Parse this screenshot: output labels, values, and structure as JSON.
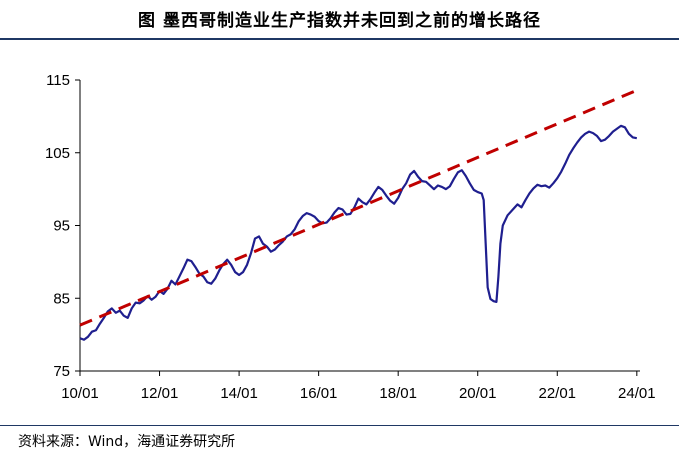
{
  "title": "图 墨西哥制造业生产指数并未回到之前的增长路径",
  "source": "资料来源：Wind，海通证券研究所",
  "colors": {
    "series": "#1f1f8f",
    "trend": "#c00000",
    "axis": "#000000",
    "rule": "#1f3864"
  },
  "chart_data": {
    "type": "line",
    "title": "墨西哥制造业生产指数并未回到之前的增长路径",
    "xlabel": "",
    "ylabel": "",
    "xlim": [
      2010.0,
      2024.08
    ],
    "ylim": [
      75,
      115
    ],
    "yticks": [
      75,
      85,
      95,
      105,
      115
    ],
    "xticks": [
      {
        "value": 2010.0,
        "label": "10/01"
      },
      {
        "value": 2012.0,
        "label": "12/01"
      },
      {
        "value": 2014.0,
        "label": "14/01"
      },
      {
        "value": 2016.0,
        "label": "16/01"
      },
      {
        "value": 2018.0,
        "label": "18/01"
      },
      {
        "value": 2020.0,
        "label": "20/01"
      },
      {
        "value": 2022.0,
        "label": "22/01"
      },
      {
        "value": 2024.0,
        "label": "24/01"
      }
    ],
    "grid": false,
    "legend": "none",
    "series": [
      {
        "style": "solid",
        "color": "#1f1f8f",
        "points": [
          [
            2010.0,
            79.5
          ],
          [
            2010.1,
            79.3
          ],
          [
            2010.2,
            79.7
          ],
          [
            2010.3,
            80.4
          ],
          [
            2010.4,
            80.6
          ],
          [
            2010.5,
            81.5
          ],
          [
            2010.6,
            82.3
          ],
          [
            2010.7,
            83.2
          ],
          [
            2010.8,
            83.6
          ],
          [
            2010.9,
            83.0
          ],
          [
            2011.0,
            83.3
          ],
          [
            2011.1,
            82.6
          ],
          [
            2011.2,
            82.3
          ],
          [
            2011.3,
            83.6
          ],
          [
            2011.4,
            84.4
          ],
          [
            2011.5,
            84.3
          ],
          [
            2011.6,
            84.7
          ],
          [
            2011.7,
            85.3
          ],
          [
            2011.8,
            84.8
          ],
          [
            2011.9,
            85.2
          ],
          [
            2012.0,
            86.0
          ],
          [
            2012.1,
            85.6
          ],
          [
            2012.2,
            86.3
          ],
          [
            2012.3,
            87.4
          ],
          [
            2012.4,
            86.9
          ],
          [
            2012.5,
            88.0
          ],
          [
            2012.6,
            89.1
          ],
          [
            2012.7,
            90.3
          ],
          [
            2012.8,
            90.1
          ],
          [
            2012.9,
            89.3
          ],
          [
            2013.0,
            88.4
          ],
          [
            2013.1,
            88.0
          ],
          [
            2013.2,
            87.2
          ],
          [
            2013.3,
            87.0
          ],
          [
            2013.4,
            87.7
          ],
          [
            2013.5,
            88.8
          ],
          [
            2013.6,
            89.7
          ],
          [
            2013.7,
            90.3
          ],
          [
            2013.8,
            89.6
          ],
          [
            2013.9,
            88.6
          ],
          [
            2014.0,
            88.2
          ],
          [
            2014.1,
            88.6
          ],
          [
            2014.2,
            89.6
          ],
          [
            2014.3,
            91.2
          ],
          [
            2014.4,
            93.2
          ],
          [
            2014.5,
            93.5
          ],
          [
            2014.6,
            92.5
          ],
          [
            2014.7,
            92.1
          ],
          [
            2014.8,
            91.4
          ],
          [
            2014.9,
            91.7
          ],
          [
            2015.0,
            92.3
          ],
          [
            2015.1,
            92.8
          ],
          [
            2015.2,
            93.5
          ],
          [
            2015.3,
            93.8
          ],
          [
            2015.4,
            94.5
          ],
          [
            2015.5,
            95.6
          ],
          [
            2015.6,
            96.3
          ],
          [
            2015.7,
            96.7
          ],
          [
            2015.8,
            96.5
          ],
          [
            2015.9,
            96.2
          ],
          [
            2016.0,
            95.6
          ],
          [
            2016.1,
            95.3
          ],
          [
            2016.2,
            95.4
          ],
          [
            2016.3,
            96.0
          ],
          [
            2016.4,
            96.8
          ],
          [
            2016.5,
            97.4
          ],
          [
            2016.6,
            97.2
          ],
          [
            2016.7,
            96.5
          ],
          [
            2016.8,
            96.6
          ],
          [
            2016.9,
            97.5
          ],
          [
            2017.0,
            98.7
          ],
          [
            2017.1,
            98.2
          ],
          [
            2017.2,
            97.9
          ],
          [
            2017.3,
            98.6
          ],
          [
            2017.4,
            99.5
          ],
          [
            2017.5,
            100.3
          ],
          [
            2017.6,
            99.9
          ],
          [
            2017.7,
            99.1
          ],
          [
            2017.8,
            98.4
          ],
          [
            2017.9,
            98.0
          ],
          [
            2018.0,
            98.8
          ],
          [
            2018.1,
            100.0
          ],
          [
            2018.2,
            100.8
          ],
          [
            2018.3,
            102.0
          ],
          [
            2018.4,
            102.5
          ],
          [
            2018.5,
            101.7
          ],
          [
            2018.6,
            101.1
          ],
          [
            2018.7,
            101.0
          ],
          [
            2018.8,
            100.5
          ],
          [
            2018.9,
            100.0
          ],
          [
            2019.0,
            100.5
          ],
          [
            2019.1,
            100.3
          ],
          [
            2019.2,
            100.0
          ],
          [
            2019.3,
            100.4
          ],
          [
            2019.4,
            101.4
          ],
          [
            2019.5,
            102.3
          ],
          [
            2019.6,
            102.6
          ],
          [
            2019.7,
            101.8
          ],
          [
            2019.8,
            100.8
          ],
          [
            2019.9,
            99.9
          ],
          [
            2020.0,
            99.6
          ],
          [
            2020.1,
            99.4
          ],
          [
            2020.15,
            98.5
          ],
          [
            2020.2,
            92.5
          ],
          [
            2020.25,
            86.5
          ],
          [
            2020.32,
            84.9
          ],
          [
            2020.4,
            84.6
          ],
          [
            2020.47,
            84.5
          ],
          [
            2020.52,
            88.0
          ],
          [
            2020.57,
            92.5
          ],
          [
            2020.63,
            95.0
          ],
          [
            2020.75,
            96.4
          ],
          [
            2020.9,
            97.3
          ],
          [
            2021.0,
            97.9
          ],
          [
            2021.1,
            97.5
          ],
          [
            2021.2,
            98.5
          ],
          [
            2021.3,
            99.4
          ],
          [
            2021.4,
            100.1
          ],
          [
            2021.5,
            100.6
          ],
          [
            2021.6,
            100.4
          ],
          [
            2021.7,
            100.5
          ],
          [
            2021.8,
            100.2
          ],
          [
            2021.9,
            100.8
          ],
          [
            2022.0,
            101.5
          ],
          [
            2022.1,
            102.4
          ],
          [
            2022.2,
            103.5
          ],
          [
            2022.3,
            104.7
          ],
          [
            2022.4,
            105.6
          ],
          [
            2022.5,
            106.4
          ],
          [
            2022.6,
            107.1
          ],
          [
            2022.7,
            107.6
          ],
          [
            2022.8,
            107.9
          ],
          [
            2022.9,
            107.7
          ],
          [
            2023.0,
            107.3
          ],
          [
            2023.1,
            106.6
          ],
          [
            2023.2,
            106.8
          ],
          [
            2023.3,
            107.3
          ],
          [
            2023.4,
            107.9
          ],
          [
            2023.5,
            108.3
          ],
          [
            2023.6,
            108.7
          ],
          [
            2023.7,
            108.5
          ],
          [
            2023.8,
            107.6
          ],
          [
            2023.9,
            107.1
          ],
          [
            2024.0,
            107.0
          ]
        ]
      },
      {
        "style": "dashed",
        "color": "#c00000",
        "points": [
          [
            2010.0,
            81.3
          ],
          [
            2024.05,
            113.7
          ]
        ]
      }
    ]
  }
}
